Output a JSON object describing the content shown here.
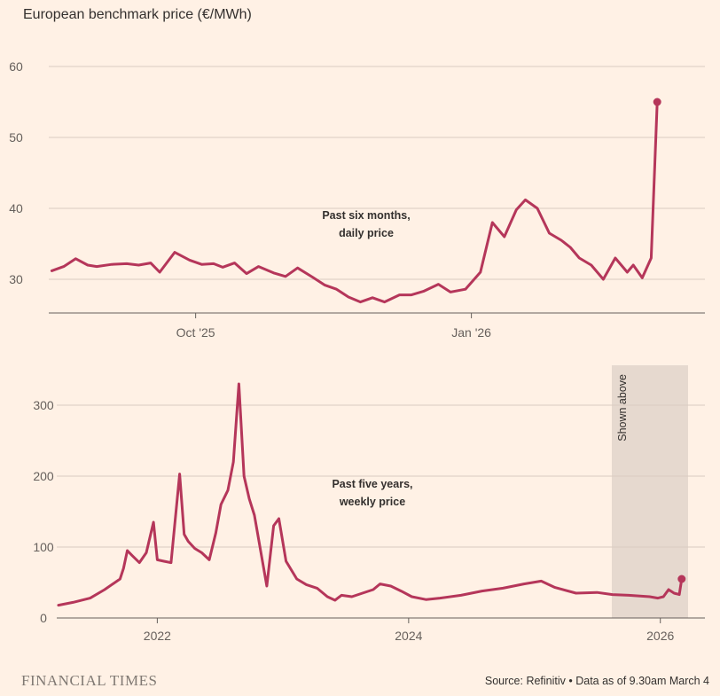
{
  "title": "European benchmark price (€/MWh)",
  "footer": {
    "brand": "FINANCIAL TIMES",
    "source": "Source: Refinitiv • Data as of 9.30am March 4"
  },
  "colors": {
    "background": "#FFF1E5",
    "line": "#B5365A",
    "grid": "#D9CCC1",
    "band": "#E6D9CF"
  },
  "chart_data": [
    {
      "type": "line",
      "title": "",
      "annotation": [
        "Past six months,",
        "daily price"
      ],
      "x_ticks": [
        {
          "x": "2025-10-01",
          "label": "Oct '25"
        },
        {
          "x": "2026-01-01",
          "label": "Jan '26"
        }
      ],
      "xlim": [
        "2025-08-13",
        "2026-03-14"
      ],
      "y_ticks": [
        30,
        40,
        50,
        60
      ],
      "ylim": [
        24,
        64
      ],
      "grid": true,
      "series": [
        {
          "x": [
            "2025-08-14",
            "2025-08-18",
            "2025-08-22",
            "2025-08-26",
            "2025-08-29",
            "2025-09-03",
            "2025-09-08",
            "2025-09-12",
            "2025-09-16",
            "2025-09-19",
            "2025-09-24",
            "2025-09-29",
            "2025-10-03",
            "2025-10-07",
            "2025-10-10",
            "2025-10-14",
            "2025-10-18",
            "2025-10-22",
            "2025-10-27",
            "2025-10-31",
            "2025-11-04",
            "2025-11-09",
            "2025-11-13",
            "2025-11-17",
            "2025-11-21",
            "2025-11-25",
            "2025-11-29",
            "2025-12-03",
            "2025-12-08",
            "2025-12-12",
            "2025-12-16",
            "2025-12-21",
            "2025-12-25",
            "2025-12-30",
            "2026-01-04",
            "2026-01-08",
            "2026-01-12",
            "2026-01-16",
            "2026-01-19",
            "2026-01-23",
            "2026-01-27",
            "2026-01-31",
            "2026-02-03",
            "2026-02-06",
            "2026-02-10",
            "2026-02-14",
            "2026-02-18",
            "2026-02-22",
            "2026-02-24",
            "2026-02-27",
            "2026-03-02",
            "2026-03-04"
          ],
          "values": [
            31.2,
            31.8,
            32.9,
            32.0,
            31.8,
            32.1,
            32.2,
            32.0,
            32.3,
            31.0,
            33.8,
            32.7,
            32.1,
            32.2,
            31.7,
            32.3,
            30.8,
            31.8,
            30.9,
            30.4,
            31.6,
            30.3,
            29.2,
            28.6,
            27.5,
            26.8,
            27.4,
            26.8,
            27.8,
            27.8,
            28.3,
            29.3,
            28.2,
            28.6,
            31.0,
            38.0,
            36.0,
            39.8,
            41.2,
            40.0,
            36.5,
            35.5,
            34.5,
            33.0,
            32.0,
            30.0,
            33.0,
            31.0,
            32.0,
            30.2,
            33.0,
            55.0
          ]
        }
      ]
    },
    {
      "type": "line",
      "title": "",
      "annotation": [
        "Past five years,",
        "weekly price"
      ],
      "band_label": "Shown above",
      "band_range": [
        "2025-08-13",
        "2026-03-04"
      ],
      "x_ticks": [
        {
          "x": "2022-01-01",
          "label": "2022"
        },
        {
          "x": "2024-01-01",
          "label": "2024"
        },
        {
          "x": "2026-01-01",
          "label": "2026"
        }
      ],
      "xlim": [
        "2021-03-15",
        "2026-03-20"
      ],
      "y_ticks": [
        0,
        100,
        200,
        300
      ],
      "ylim": [
        0,
        350
      ],
      "grid": true,
      "series": [
        {
          "x": [
            "2021-03-20",
            "2021-05-01",
            "2021-06-20",
            "2021-08-01",
            "2021-09-15",
            "2021-09-25",
            "2021-10-06",
            "2021-10-20",
            "2021-11-10",
            "2021-11-30",
            "2021-12-21",
            "2022-01-01",
            "2022-01-20",
            "2022-02-10",
            "2022-03-07",
            "2022-03-20",
            "2022-04-01",
            "2022-04-20",
            "2022-05-10",
            "2022-06-01",
            "2022-06-20",
            "2022-07-05",
            "2022-07-25",
            "2022-08-10",
            "2022-08-26",
            "2022-09-10",
            "2022-09-25",
            "2022-10-10",
            "2022-10-28",
            "2022-11-15",
            "2022-12-05",
            "2022-12-20",
            "2023-01-10",
            "2023-02-10",
            "2023-03-10",
            "2023-04-10",
            "2023-05-10",
            "2023-06-01",
            "2023-06-20",
            "2023-07-20",
            "2023-08-20",
            "2023-09-20",
            "2023-10-10",
            "2023-11-10",
            "2023-12-10",
            "2024-01-10",
            "2024-02-20",
            "2024-04-01",
            "2024-06-01",
            "2024-08-01",
            "2024-10-01",
            "2024-12-01",
            "2025-01-20",
            "2025-03-01",
            "2025-05-01",
            "2025-07-01",
            "2025-08-15",
            "2025-10-01",
            "2025-12-01",
            "2025-12-25",
            "2026-01-10",
            "2026-01-25",
            "2026-02-10",
            "2026-02-25",
            "2026-03-04"
          ],
          "values": [
            18,
            22,
            28,
            40,
            55,
            70,
            95,
            88,
            78,
            92,
            135,
            82,
            80,
            78,
            203,
            118,
            108,
            98,
            92,
            82,
            120,
            160,
            180,
            220,
            330,
            200,
            168,
            145,
            95,
            45,
            130,
            140,
            80,
            55,
            47,
            42,
            30,
            25,
            32,
            30,
            35,
            40,
            48,
            45,
            38,
            30,
            26,
            28,
            32,
            38,
            42,
            48,
            52,
            43,
            35,
            36,
            33,
            32,
            30,
            28,
            30,
            40,
            35,
            33,
            55
          ]
        }
      ]
    }
  ]
}
